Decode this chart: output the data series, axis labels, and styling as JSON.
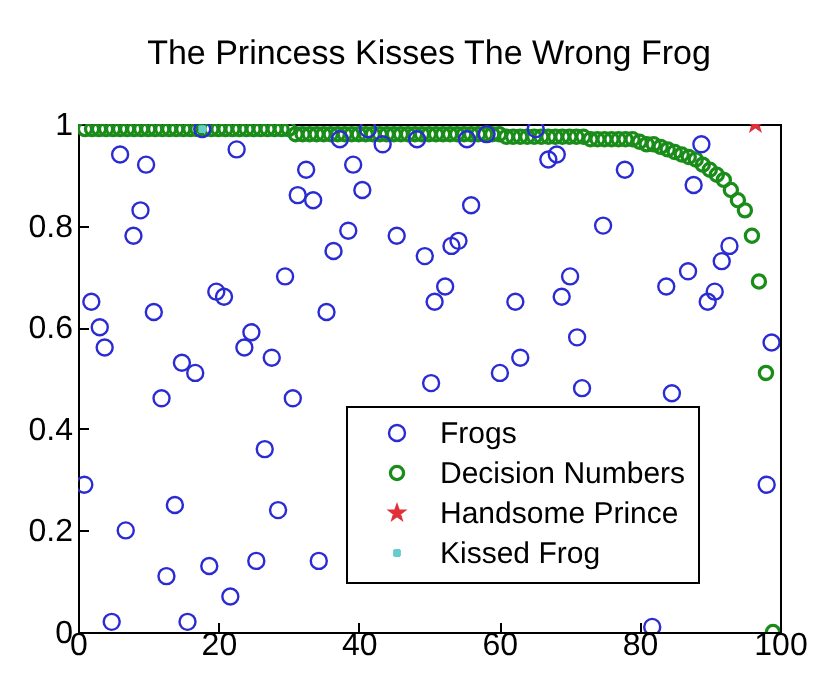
{
  "chart_data": {
    "type": "scatter",
    "title": "The Princess Kisses The Wrong Frog",
    "xlim": [
      0,
      100
    ],
    "xticks": [
      0,
      20,
      40,
      60,
      80,
      100
    ],
    "ylim": [
      0,
      1
    ],
    "yticks": [
      0,
      0.2,
      0.4,
      0.6,
      0.8,
      1
    ],
    "grid": false,
    "legend": "bottom right",
    "series": [
      {
        "name": "Frogs",
        "color": "#2b2bd4",
        "marker": "circle",
        "x": [
          0.9,
          1.9,
          3.1,
          3.8,
          4.8,
          6.0,
          6.8,
          7.9,
          8.9,
          9.7,
          10.8,
          11.9,
          12.6,
          13.8,
          14.8,
          15.6,
          16.7,
          17.7,
          18.7,
          19.7,
          20.8,
          21.7,
          22.6,
          23.7,
          24.7,
          25.4,
          26.6,
          27.6,
          28.5,
          29.5,
          30.6,
          31.3,
          32.5,
          33.5,
          34.3,
          35.4,
          36.4,
          37.3,
          38.5,
          39.2,
          40.5,
          41.3,
          43.4,
          45.4,
          48.3,
          49.4,
          50.3,
          50.8,
          52.3,
          53.2,
          54.2,
          55.4,
          56.0,
          58.2,
          60.1,
          62.3,
          63.0,
          65.2,
          67.0,
          68.2,
          68.9,
          70.1,
          71.1,
          71.8,
          74.8,
          77.9,
          81.8,
          83.8,
          84.6,
          86.9,
          87.7,
          88.8,
          89.7,
          90.7,
          91.7,
          92.8,
          98.1,
          98.8
        ],
        "values": [
          0.29,
          0.65,
          0.6,
          0.56,
          0.02,
          0.94,
          0.2,
          0.78,
          0.83,
          0.92,
          0.63,
          0.46,
          0.11,
          0.25,
          0.53,
          0.02,
          0.51,
          0.99,
          0.13,
          0.67,
          0.66,
          0.07,
          0.95,
          0.56,
          0.59,
          0.14,
          0.36,
          0.54,
          0.24,
          0.7,
          0.46,
          0.86,
          0.91,
          0.85,
          0.14,
          0.63,
          0.75,
          0.97,
          0.79,
          0.92,
          0.87,
          0.99,
          0.96,
          0.78,
          0.97,
          0.74,
          0.49,
          0.65,
          0.68,
          0.76,
          0.77,
          0.97,
          0.84,
          0.98,
          0.51,
          0.65,
          0.54,
          0.99,
          0.93,
          0.94,
          0.66,
          0.7,
          0.58,
          0.48,
          0.8,
          0.91,
          0.01,
          0.68,
          0.47,
          0.71,
          0.88,
          0.96,
          0.65,
          0.67,
          0.73,
          0.76,
          0.29,
          0.57
        ]
      },
      {
        "name": "Decision Numbers",
        "color": "#1a8c1a",
        "marker": "circle",
        "x": [
          1,
          2,
          3,
          4,
          5,
          6,
          7,
          8,
          9,
          10,
          11,
          12,
          13,
          14,
          15,
          16,
          17,
          18,
          19,
          20,
          21,
          22,
          23,
          24,
          25,
          26,
          27,
          28,
          29,
          30,
          31,
          32,
          33,
          34,
          35,
          36,
          37,
          38,
          39,
          40,
          41,
          42,
          43,
          44,
          45,
          46,
          47,
          48,
          49,
          50,
          51,
          52,
          53,
          54,
          55,
          56,
          57,
          58,
          59,
          60,
          61,
          62,
          63,
          64,
          65,
          66,
          67,
          68,
          69,
          70,
          71,
          72,
          73,
          74,
          75,
          76,
          77,
          78,
          79,
          80,
          81,
          82,
          83,
          84,
          85,
          86,
          87,
          88,
          89,
          90,
          91,
          92,
          93,
          94,
          95,
          96,
          97,
          98,
          99
        ],
        "values": [
          0.99,
          0.99,
          0.99,
          0.99,
          0.99,
          0.99,
          0.99,
          0.99,
          0.99,
          0.99,
          0.99,
          0.99,
          0.99,
          0.99,
          0.99,
          0.99,
          0.99,
          0.99,
          0.99,
          0.99,
          0.99,
          0.99,
          0.99,
          0.99,
          0.99,
          0.99,
          0.99,
          0.99,
          0.99,
          0.99,
          0.98,
          0.98,
          0.98,
          0.98,
          0.98,
          0.98,
          0.98,
          0.98,
          0.98,
          0.98,
          0.98,
          0.98,
          0.98,
          0.98,
          0.98,
          0.98,
          0.98,
          0.98,
          0.98,
          0.98,
          0.98,
          0.98,
          0.98,
          0.98,
          0.98,
          0.98,
          0.98,
          0.98,
          0.98,
          0.98,
          0.975,
          0.975,
          0.975,
          0.975,
          0.975,
          0.975,
          0.975,
          0.975,
          0.975,
          0.975,
          0.975,
          0.975,
          0.97,
          0.97,
          0.97,
          0.97,
          0.97,
          0.97,
          0.97,
          0.965,
          0.96,
          0.96,
          0.955,
          0.95,
          0.945,
          0.94,
          0.935,
          0.93,
          0.92,
          0.91,
          0.9,
          0.89,
          0.87,
          0.85,
          0.83,
          0.78,
          0.69,
          0.51,
          0.0
        ]
      },
      {
        "name": "Handsome Prince",
        "color": "#e0303a",
        "marker": "star",
        "x": [
          96.5
        ],
        "values": [
          1.0
        ]
      },
      {
        "name": "Kissed Frog",
        "color": "#66cccc",
        "marker": "cross",
        "x": [
          17.7
        ],
        "values": [
          0.99
        ]
      }
    ]
  }
}
